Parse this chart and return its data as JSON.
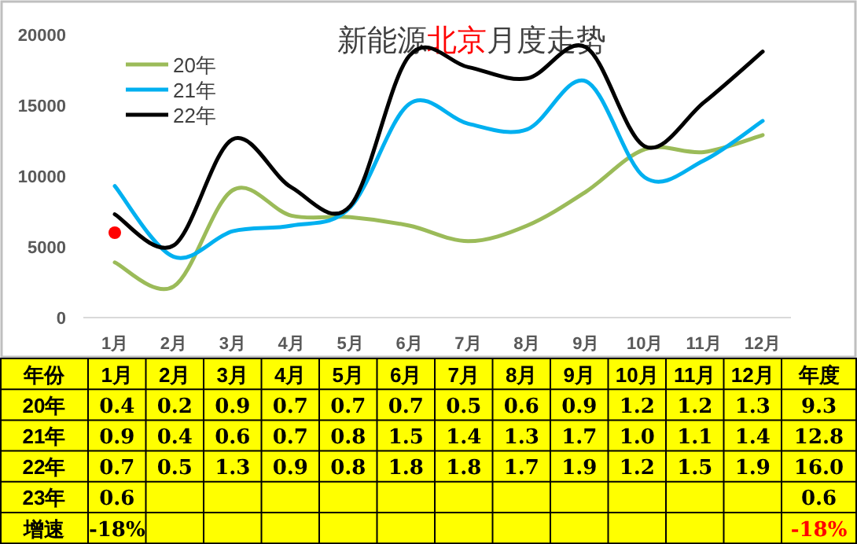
{
  "chart_data": {
    "type": "line",
    "title": "新能源北京月度走势",
    "categories": [
      "1月",
      "2月",
      "3月",
      "4月",
      "5月",
      "6月",
      "7月",
      "8月",
      "9月",
      "10月",
      "11月",
      "12月"
    ],
    "ylim": [
      0,
      20000
    ],
    "yticks": [
      0,
      5000,
      10000,
      15000,
      20000
    ],
    "grid": false,
    "legend": "top left",
    "series": [
      {
        "name": "20年",
        "color": "#9bbb59",
        "values": [
          3900,
          2200,
          9000,
          7200,
          7100,
          6500,
          5400,
          6500,
          8900,
          11900,
          11700,
          12900
        ]
      },
      {
        "name": "21年",
        "color": "#00b0f0",
        "values": [
          9300,
          4300,
          6100,
          6500,
          7800,
          15100,
          13700,
          13300,
          16700,
          9900,
          11100,
          13900
        ]
      },
      {
        "name": "22年",
        "color": "#000000",
        "values": [
          7300,
          5100,
          12600,
          9200,
          7900,
          18500,
          17700,
          16900,
          19100,
          12100,
          15200,
          18800
        ]
      },
      {
        "color": "#ff0000",
        "type": "scatter",
        "values": [
          6000,
          null,
          null,
          null,
          null,
          null,
          null,
          null,
          null,
          null,
          null,
          null
        ]
      }
    ],
    "annotations": [
      "年份",
      "年度",
      "20年",
      "0.4",
      "0.2",
      "0.9",
      "0.7",
      "0.7",
      "0.7",
      "0.5",
      "0.6",
      "0.9",
      "1.2",
      "1.2",
      "1.3",
      "9.3",
      "21年",
      "0.9",
      "0.4",
      "0.6",
      "0.7",
      "0.8",
      "1.5",
      "1.4",
      "1.3",
      "1.7",
      "1.0",
      "1.1",
      "1.4",
      "12.8",
      "22年",
      "0.7",
      "0.5",
      "1.3",
      "0.9",
      "0.8",
      "1.8",
      "1.8",
      "1.7",
      "1.9",
      "1.2",
      "1.5",
      "1.9",
      "16.0",
      "23年",
      "0.6",
      "0.6",
      "增速",
      "-18%",
      "-18%"
    ]
  }
}
